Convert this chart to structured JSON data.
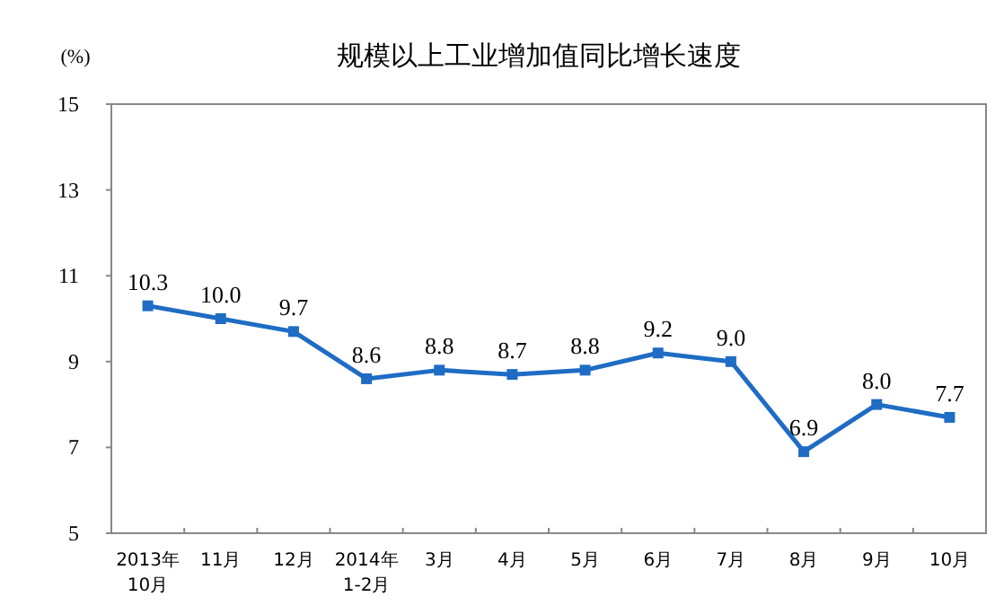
{
  "chart_data": {
    "type": "line",
    "title": "规模以上工业增加值同比增长速度",
    "ylabel": "(%)",
    "categories": [
      "2013年\n10月",
      "11月",
      "12月",
      "2014年\n1-2月",
      "3月",
      "4月",
      "5月",
      "6月",
      "7月",
      "8月",
      "9月",
      "10月"
    ],
    "series": [
      {
        "color": "#1f6cc4",
        "values": [
          10.3,
          10.0,
          9.7,
          8.6,
          8.8,
          8.7,
          8.8,
          9.2,
          9.0,
          6.9,
          8.0,
          7.7
        ],
        "value_labels": [
          "10.3",
          "10.0",
          "9.7",
          "8.6",
          "8.8",
          "8.7",
          "8.8",
          "9.2",
          "9.0",
          "6.9",
          "8.0",
          "7.7"
        ]
      }
    ],
    "ylim": [
      5,
      15
    ],
    "yticks": [
      5,
      7,
      9,
      11,
      13,
      15
    ],
    "marker": "square",
    "grid": false
  }
}
